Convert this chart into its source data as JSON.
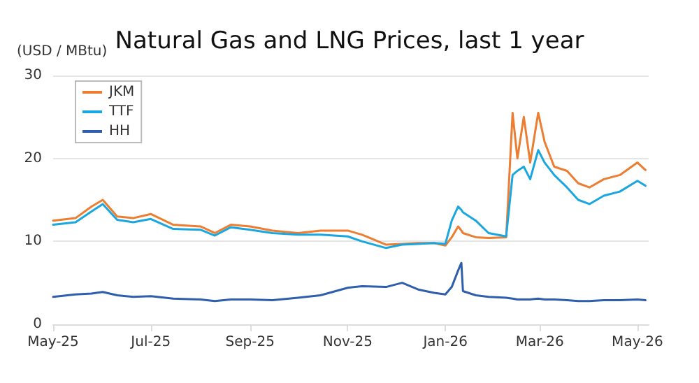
{
  "chart_data": {
    "type": "line",
    "title": "Natural Gas and LNG Prices, last 1 year",
    "ylabel": "(USD / MBtu)",
    "x": [
      "2025-05-01",
      "2025-05-15",
      "2025-05-25",
      "2025-06-01",
      "2025-06-10",
      "2025-06-20",
      "2025-07-01",
      "2025-07-15",
      "2025-08-01",
      "2025-08-10",
      "2025-08-20",
      "2025-09-01",
      "2025-09-15",
      "2025-10-01",
      "2025-10-15",
      "2025-11-01",
      "2025-11-10",
      "2025-11-25",
      "2025-12-05",
      "2025-12-15",
      "2025-12-25",
      "2026-01-01",
      "2026-01-05",
      "2026-01-09",
      "2026-01-11",
      "2026-01-12",
      "2026-01-20",
      "2026-01-28",
      "2026-02-08",
      "2026-02-12",
      "2026-02-15",
      "2026-02-19",
      "2026-02-23",
      "2026-02-28",
      "2026-03-04",
      "2026-03-10",
      "2026-03-18",
      "2026-03-25",
      "2026-04-01",
      "2026-04-10",
      "2026-04-20",
      "2026-05-01",
      "2026-05-06"
    ],
    "series": [
      {
        "name": "JKM",
        "color": "#ed7d31",
        "values": [
          12.5,
          12.8,
          14.2,
          15.0,
          13.0,
          12.8,
          13.3,
          12.0,
          11.8,
          11.0,
          12.0,
          11.8,
          11.3,
          11.0,
          11.3,
          11.3,
          10.8,
          9.6,
          9.7,
          9.8,
          9.8,
          9.5,
          10.5,
          11.8,
          11.3,
          11.0,
          10.5,
          10.4,
          10.5,
          25.5,
          20.0,
          25.0,
          19.5,
          25.5,
          22.0,
          19.0,
          18.5,
          17.0,
          16.5,
          17.5,
          18.0,
          19.5,
          18.6
        ]
      },
      {
        "name": "TTF",
        "color": "#1aa6df",
        "values": [
          12.0,
          12.3,
          13.6,
          14.5,
          12.6,
          12.3,
          12.7,
          11.5,
          11.4,
          10.7,
          11.7,
          11.4,
          11.0,
          10.8,
          10.8,
          10.6,
          10.0,
          9.2,
          9.6,
          9.7,
          9.8,
          9.7,
          12.5,
          14.2,
          13.8,
          13.5,
          12.5,
          11.0,
          10.6,
          18.0,
          18.5,
          19.0,
          17.5,
          21.0,
          19.5,
          18.0,
          16.5,
          15.0,
          14.5,
          15.5,
          16.0,
          17.3,
          16.7
        ]
      },
      {
        "name": "HH",
        "color": "#2e5eac",
        "values": [
          3.3,
          3.6,
          3.7,
          3.9,
          3.5,
          3.3,
          3.4,
          3.1,
          3.0,
          2.8,
          3.0,
          3.0,
          2.9,
          3.2,
          3.5,
          4.4,
          4.6,
          4.5,
          5.0,
          4.2,
          3.8,
          3.6,
          4.5,
          6.5,
          7.4,
          4.0,
          3.5,
          3.3,
          3.2,
          3.1,
          3.0,
          3.0,
          3.0,
          3.1,
          3.0,
          3.0,
          2.9,
          2.8,
          2.8,
          2.9,
          2.9,
          3.0,
          2.9
        ]
      }
    ],
    "xlim": [
      "2025-05-01",
      "2026-05-08"
    ],
    "xticks": [
      {
        "value": "2025-05-01",
        "label": "May-25"
      },
      {
        "value": "2025-07-01",
        "label": "Jul-25"
      },
      {
        "value": "2025-09-01",
        "label": "Sep-25"
      },
      {
        "value": "2025-11-01",
        "label": "Nov-25"
      },
      {
        "value": "2026-01-01",
        "label": "Jan-26"
      },
      {
        "value": "2026-03-01",
        "label": "Mar-26"
      },
      {
        "value": "2026-05-01",
        "label": "May-26"
      }
    ],
    "ylim": [
      0,
      30
    ],
    "yticks": [
      0,
      10,
      20,
      30
    ],
    "grid": "y",
    "legend": "top left",
    "marker": "none",
    "line_style": "solid"
  }
}
